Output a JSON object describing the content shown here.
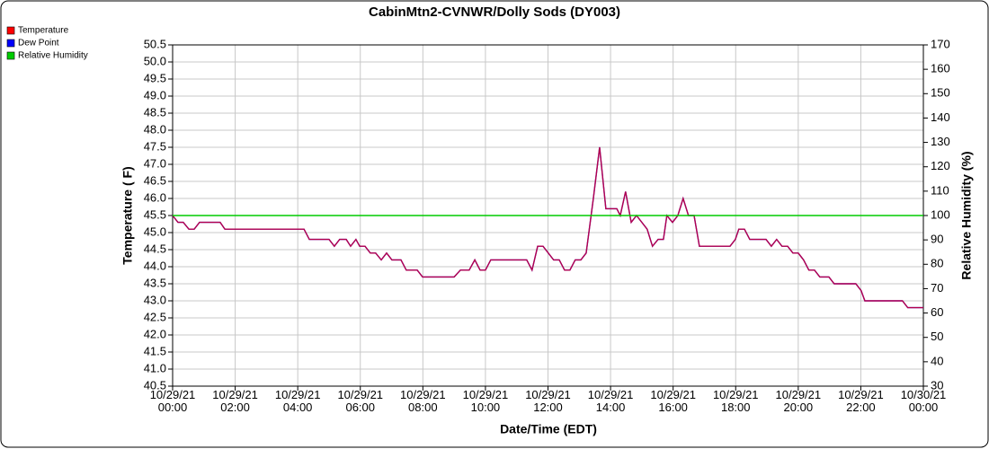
{
  "chart_data": {
    "type": "line",
    "title": "CabinMtn2-CVNWR/Dolly Sods (DY003)",
    "x_label": "Date/Time (EDT)",
    "y_label": "Temperature ( F)",
    "y2_label": "Relative Humidity (%)",
    "xlim": [
      0,
      24
    ],
    "xticks": [
      {
        "value": 0,
        "label": "10/29/21 00:00"
      },
      {
        "value": 2,
        "label": "10/29/21 02:00"
      },
      {
        "value": 4,
        "label": "10/29/21 04:00"
      },
      {
        "value": 6,
        "label": "10/29/21 06:00"
      },
      {
        "value": 8,
        "label": "10/29/21 08:00"
      },
      {
        "value": 10,
        "label": "10/29/21 10:00"
      },
      {
        "value": 12,
        "label": "10/29/21 12:00"
      },
      {
        "value": 14,
        "label": "10/29/21 14:00"
      },
      {
        "value": 16,
        "label": "10/29/21 16:00"
      },
      {
        "value": 18,
        "label": "10/29/21 18:00"
      },
      {
        "value": 20,
        "label": "10/29/21 20:00"
      },
      {
        "value": 22,
        "label": "10/29/21 22:00"
      },
      {
        "value": 24,
        "label": "10/30/21 00:00"
      }
    ],
    "ylim": [
      40.5,
      50.5
    ],
    "yticks": [
      40.5,
      {
        "value": 41,
        "label": "41.0"
      },
      41.5,
      {
        "value": 42,
        "label": "42.0"
      },
      42.5,
      {
        "value": 43,
        "label": "43.0"
      },
      43.5,
      {
        "value": 44,
        "label": "44.0"
      },
      44.5,
      {
        "value": 45,
        "label": "45.0"
      },
      45.5,
      {
        "value": 46,
        "label": "46.0"
      },
      46.5,
      {
        "value": 47,
        "label": "47.0"
      },
      47.5,
      {
        "value": 48,
        "label": "48.0"
      },
      48.5,
      {
        "value": 49,
        "label": "49.0"
      },
      49.5,
      {
        "value": 50,
        "label": "50.0"
      },
      50.5
    ],
    "y2lim": [
      30,
      170
    ],
    "y2ticks": [
      30,
      40,
      50,
      60,
      70,
      80,
      90,
      100,
      110,
      120,
      130,
      140,
      150,
      160,
      170
    ],
    "grid": true,
    "legend": "top-left",
    "series": [
      {
        "name": "Dew Point",
        "color": "#0000ff",
        "x": [
          0,
          0.17,
          0.34,
          0.52,
          0.69,
          0.86,
          1.52,
          1.67,
          4.2,
          4.37,
          5.0,
          5.17,
          5.34,
          5.55,
          5.69,
          5.86,
          5.98,
          6.15,
          6.32,
          6.49,
          6.67,
          6.84,
          7.01,
          7.3,
          7.47,
          7.82,
          7.99,
          9.0,
          9.2,
          9.48,
          9.66,
          9.83,
          10.0,
          10.17,
          11.32,
          11.49,
          11.67,
          11.84,
          12.18,
          12.36,
          12.53,
          12.7,
          12.87,
          13.05,
          13.22,
          13.45,
          13.65,
          13.85,
          14.2,
          14.31,
          14.48,
          14.66,
          14.83,
          15.17,
          15.34,
          15.52,
          15.69,
          15.8,
          15.98,
          16.15,
          16.32,
          16.49,
          16.67,
          16.84,
          17.82,
          17.99,
          18.1,
          18.28,
          18.45,
          18.97,
          19.14,
          19.31,
          19.48,
          19.66,
          19.83,
          20.0,
          20.17,
          20.34,
          20.52,
          20.69,
          20.98,
          21.15,
          21.84,
          22.01,
          22.13,
          23.33,
          23.5,
          24.0
        ],
        "values": [
          45.5,
          45.3,
          45.3,
          45.1,
          45.1,
          45.3,
          45.3,
          45.1,
          45.1,
          44.8,
          44.8,
          44.6,
          44.8,
          44.8,
          44.6,
          44.8,
          44.6,
          44.6,
          44.4,
          44.4,
          44.2,
          44.4,
          44.2,
          44.2,
          43.9,
          43.9,
          43.7,
          43.7,
          43.9,
          43.9,
          44.2,
          43.9,
          43.9,
          44.2,
          44.2,
          43.9,
          44.6,
          44.6,
          44.2,
          44.2,
          43.9,
          43.9,
          44.2,
          44.2,
          44.4,
          46.0,
          47.5,
          45.7,
          45.7,
          45.5,
          46.2,
          45.3,
          45.5,
          45.1,
          44.6,
          44.8,
          44.8,
          45.5,
          45.3,
          45.5,
          46.0,
          45.5,
          45.5,
          44.6,
          44.6,
          44.8,
          45.1,
          45.1,
          44.8,
          44.8,
          44.6,
          44.8,
          44.6,
          44.6,
          44.4,
          44.4,
          44.2,
          43.9,
          43.9,
          43.7,
          43.7,
          43.5,
          43.5,
          43.3,
          43.0,
          43.0,
          42.8,
          42.8
        ]
      },
      {
        "name": "Temperature",
        "color": "#ff0000",
        "x": [
          0,
          0.17,
          0.34,
          0.52,
          0.69,
          0.86,
          1.52,
          1.67,
          4.2,
          4.37,
          5.0,
          5.17,
          5.34,
          5.55,
          5.69,
          5.86,
          5.98,
          6.15,
          6.32,
          6.49,
          6.67,
          6.84,
          7.01,
          7.3,
          7.47,
          7.82,
          7.99,
          9.0,
          9.2,
          9.48,
          9.66,
          9.83,
          10.0,
          10.17,
          11.32,
          11.49,
          11.67,
          11.84,
          12.18,
          12.36,
          12.53,
          12.7,
          12.87,
          13.05,
          13.22,
          13.45,
          13.65,
          13.85,
          14.2,
          14.31,
          14.48,
          14.66,
          14.83,
          15.17,
          15.34,
          15.52,
          15.69,
          15.8,
          15.98,
          16.15,
          16.32,
          16.49,
          16.67,
          16.84,
          17.82,
          17.99,
          18.1,
          18.28,
          18.45,
          18.97,
          19.14,
          19.31,
          19.48,
          19.66,
          19.83,
          20.0,
          20.17,
          20.34,
          20.52,
          20.69,
          20.98,
          21.15,
          21.84,
          22.01,
          22.13,
          23.33,
          23.5,
          24.0
        ],
        "values": [
          45.5,
          45.3,
          45.3,
          45.1,
          45.1,
          45.3,
          45.3,
          45.1,
          45.1,
          44.8,
          44.8,
          44.6,
          44.8,
          44.8,
          44.6,
          44.8,
          44.6,
          44.6,
          44.4,
          44.4,
          44.2,
          44.4,
          44.2,
          44.2,
          43.9,
          43.9,
          43.7,
          43.7,
          43.9,
          43.9,
          44.2,
          43.9,
          43.9,
          44.2,
          44.2,
          43.9,
          44.6,
          44.6,
          44.2,
          44.2,
          43.9,
          43.9,
          44.2,
          44.2,
          44.4,
          46.0,
          47.5,
          45.7,
          45.7,
          45.5,
          46.2,
          45.3,
          45.5,
          45.1,
          44.6,
          44.8,
          44.8,
          45.5,
          45.3,
          45.5,
          46.0,
          45.5,
          45.5,
          44.6,
          44.6,
          44.8,
          45.1,
          45.1,
          44.8,
          44.8,
          44.6,
          44.8,
          44.6,
          44.6,
          44.4,
          44.4,
          44.2,
          43.9,
          43.9,
          43.7,
          43.7,
          43.5,
          43.5,
          43.3,
          43.0,
          43.0,
          42.8,
          42.8
        ]
      },
      {
        "name": "Relative Humidity",
        "color": "#00cc00",
        "axis": "y2",
        "x": [
          0,
          24
        ],
        "values": [
          100,
          100
        ]
      }
    ]
  }
}
